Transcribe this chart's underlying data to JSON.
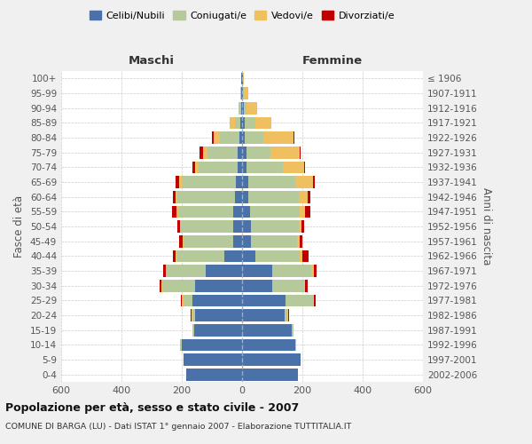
{
  "age_groups": [
    "0-4",
    "5-9",
    "10-14",
    "15-19",
    "20-24",
    "25-29",
    "30-34",
    "35-39",
    "40-44",
    "45-49",
    "50-54",
    "55-59",
    "60-64",
    "65-69",
    "70-74",
    "75-79",
    "80-84",
    "85-89",
    "90-94",
    "95-99",
    "100+"
  ],
  "birth_years": [
    "2002-2006",
    "1997-2001",
    "1992-1996",
    "1987-1991",
    "1982-1986",
    "1977-1981",
    "1972-1976",
    "1967-1971",
    "1962-1966",
    "1957-1961",
    "1952-1956",
    "1947-1951",
    "1942-1946",
    "1937-1941",
    "1932-1936",
    "1927-1931",
    "1922-1926",
    "1917-1921",
    "1912-1916",
    "1907-1911",
    "≤ 1906"
  ],
  "males": {
    "celibi": [
      185,
      195,
      200,
      160,
      155,
      165,
      155,
      120,
      60,
      30,
      28,
      28,
      25,
      20,
      15,
      15,
      10,
      5,
      3,
      2,
      2
    ],
    "coniugati": [
      0,
      0,
      5,
      5,
      10,
      30,
      110,
      130,
      155,
      165,
      175,
      185,
      190,
      180,
      130,
      100,
      65,
      20,
      5,
      2,
      0
    ],
    "vedovi": [
      0,
      0,
      0,
      0,
      3,
      5,
      3,
      3,
      5,
      3,
      3,
      5,
      5,
      10,
      10,
      15,
      20,
      15,
      5,
      2,
      0
    ],
    "divorziati": [
      0,
      0,
      0,
      0,
      3,
      3,
      5,
      10,
      8,
      10,
      8,
      15,
      10,
      10,
      10,
      10,
      5,
      0,
      0,
      0,
      0
    ]
  },
  "females": {
    "nubili": [
      185,
      195,
      175,
      165,
      140,
      145,
      100,
      100,
      45,
      28,
      28,
      25,
      22,
      20,
      15,
      15,
      10,
      8,
      5,
      3,
      2
    ],
    "coniugate": [
      0,
      0,
      5,
      5,
      10,
      90,
      105,
      130,
      145,
      155,
      160,
      165,
      165,
      155,
      120,
      80,
      60,
      35,
      10,
      3,
      0
    ],
    "vedove": [
      0,
      0,
      0,
      0,
      3,
      3,
      5,
      8,
      10,
      8,
      10,
      20,
      30,
      60,
      70,
      95,
      100,
      55,
      35,
      15,
      3
    ],
    "divorziate": [
      0,
      0,
      0,
      0,
      3,
      5,
      8,
      10,
      20,
      8,
      8,
      15,
      10,
      5,
      5,
      3,
      3,
      0,
      0,
      0,
      0
    ]
  },
  "colors": {
    "celibi": "#4a72a8",
    "coniugati": "#b5c99a",
    "vedovi": "#f0c060",
    "divorziati": "#c00000"
  },
  "title1": "Popolazione per età, sesso e stato civile - 2007",
  "title2": "COMUNE DI BARGA (LU) - Dati ISTAT 1° gennaio 2007 - Elaborazione TUTTITALIA.IT",
  "xlabel_left": "Maschi",
  "xlabel_right": "Femmine",
  "ylabel_left": "Fasce di età",
  "ylabel_right": "Anni di nascita",
  "xlim": 600,
  "background_color": "#f0f0f0",
  "plot_bg": "#ffffff",
  "legend_labels": [
    "Celibi/Nubili",
    "Coniugati/e",
    "Vedovi/e",
    "Divorziati/e"
  ]
}
